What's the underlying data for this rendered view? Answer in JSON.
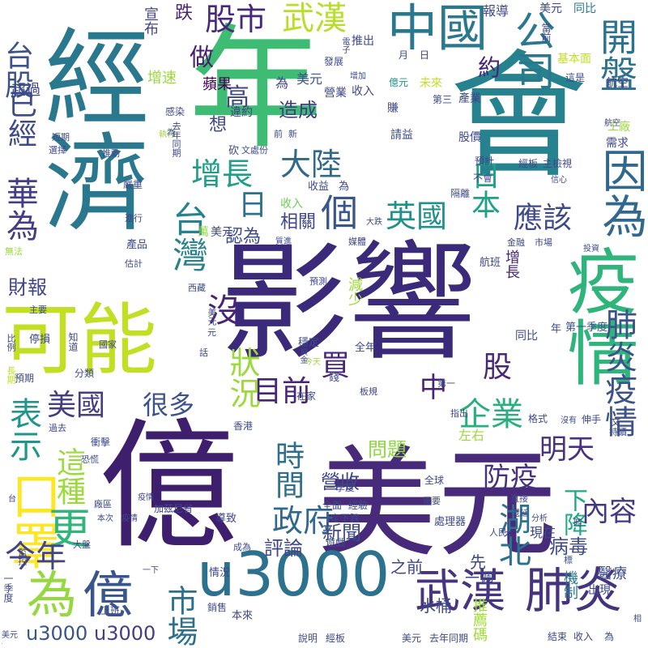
{
  "words": [
    {
      "text": "影響",
      "color": "#3b2a7a"
    },
    {
      "text": "億",
      "color": "#3d1f6e"
    },
    {
      "text": "美元",
      "color": "#472a7a"
    },
    {
      "text": "年",
      "color": "#3fbc73"
    },
    {
      "text": "經濟",
      "color": "#2a788e"
    },
    {
      "text": "會",
      "color": "#26828e"
    },
    {
      "text": "u3000",
      "color": "#2c728e"
    },
    {
      "text": "可能",
      "color": "#c2df23"
    },
    {
      "text": "疫情",
      "color": "#2fb47c"
    },
    {
      "text": "武漢",
      "color": "#463480"
    },
    {
      "text": "肺炎",
      "color": "#46337e"
    },
    {
      "text": "為",
      "color": "#95d840"
    },
    {
      "text": "億",
      "color": "#39568c"
    },
    {
      "text": "因為",
      "color": "#31688e"
    },
    {
      "text": "中國",
      "color": "#2a788e"
    },
    {
      "text": "股市",
      "color": "#482878"
    },
    {
      "text": "武漢",
      "color": "#b8de29"
    },
    {
      "text": "公司",
      "color": "#2a788e"
    },
    {
      "text": "開盤",
      "color": "#2c728e"
    },
    {
      "text": "台股",
      "color": "#3b528b"
    },
    {
      "text": "已經",
      "color": "#3e4a89"
    },
    {
      "text": "華為",
      "color": "#433e85"
    },
    {
      "text": "口罩",
      "color": "#fde725"
    },
    {
      "text": "表示",
      "color": "#1f968b"
    },
    {
      "text": "這種",
      "color": "#9bd93c"
    },
    {
      "text": "更",
      "color": "#31b57b"
    },
    {
      "text": "今年",
      "color": "#414487"
    },
    {
      "text": "市場",
      "color": "#2d708e"
    },
    {
      "text": "u3000",
      "color": "#39568c"
    },
    {
      "text": "u3000",
      "color": "#433e85"
    },
    {
      "text": "台灣",
      "color": "#26828e"
    },
    {
      "text": "增長",
      "color": "#1f9e89"
    },
    {
      "text": "大陸",
      "color": "#31688e"
    },
    {
      "text": "高",
      "color": "#3f4788"
    },
    {
      "text": "做",
      "color": "#481f70"
    },
    {
      "text": "日",
      "color": "#2c728e"
    },
    {
      "text": "個",
      "color": "#39568c"
    },
    {
      "text": "英國",
      "color": "#21918c"
    },
    {
      "text": "日本",
      "color": "#1fa187"
    },
    {
      "text": "應該",
      "color": "#3e4989"
    },
    {
      "text": "肺炎疫情",
      "color": "#3b528b"
    },
    {
      "text": "沒",
      "color": "#482475"
    },
    {
      "text": "目前",
      "color": "#482475"
    },
    {
      "text": "買",
      "color": "#482677"
    },
    {
      "text": "很多",
      "color": "#3b528b"
    },
    {
      "text": "美國",
      "color": "#433e85"
    },
    {
      "text": "狀況",
      "color": "#9bd93c"
    },
    {
      "text": "時間",
      "color": "#2d708e"
    },
    {
      "text": "企業",
      "color": "#29af7f"
    },
    {
      "text": "股",
      "color": "#482878"
    },
    {
      "text": "中",
      "color": "#482475"
    },
    {
      "text": "政府",
      "color": "#31688e"
    },
    {
      "text": "防疫",
      "color": "#46327e"
    },
    {
      "text": "明天",
      "color": "#46327e"
    },
    {
      "text": "湖北",
      "color": "#2c728e"
    },
    {
      "text": "下降",
      "color": "#22a884"
    },
    {
      "text": "內容",
      "color": "#453781"
    },
    {
      "text": "營收",
      "color": "#404688"
    },
    {
      "text": "新聞",
      "color": "#3e4a89"
    },
    {
      "text": "評論",
      "color": "#3f4788"
    },
    {
      "text": "問題",
      "color": "#8fd744"
    },
    {
      "text": "造成",
      "color": "#443b84"
    },
    {
      "text": "認為",
      "color": "#3e4a89"
    },
    {
      "text": "想",
      "color": "#3f4788"
    },
    {
      "text": "相關",
      "color": "#404688"
    },
    {
      "text": "約",
      "color": "#482475"
    },
    {
      "text": "病毒",
      "color": "#3e4a89"
    },
    {
      "text": "財報",
      "color": "#414487"
    },
    {
      "text": "增速",
      "color": "#9bd93c"
    },
    {
      "text": "蘋果",
      "color": "#440154"
    },
    {
      "text": "超過",
      "color": "#3f4788"
    },
    {
      "text": "跌",
      "color": "#482475"
    },
    {
      "text": "宣布",
      "color": "#414487"
    },
    {
      "text": "報導",
      "color": "#3e4989"
    },
    {
      "text": "美元",
      "color": "#3f4788"
    },
    {
      "text": "同比",
      "color": "#2a788e"
    },
    {
      "text": "當前",
      "color": "#3e4989"
    },
    {
      "text": "推出",
      "color": "#3e4989"
    },
    {
      "text": "發展",
      "color": "#3f4788"
    },
    {
      "text": "月",
      "color": "#3e4a89"
    },
    {
      "text": "日",
      "color": "#433e85"
    },
    {
      "text": "基本面",
      "color": "#c2df23"
    },
    {
      "text": "億元",
      "color": "#21918c"
    },
    {
      "text": "收入",
      "color": "#3e4a89"
    },
    {
      "text": "營業",
      "color": "#3f4788"
    },
    {
      "text": "為",
      "color": "#414487"
    },
    {
      "text": "美元",
      "color": "#3b528b"
    },
    {
      "text": "第三",
      "color": "#3e4a89"
    },
    {
      "text": "產業",
      "color": "#3e4989"
    },
    {
      "text": "股價",
      "color": "#3f4788"
    },
    {
      "text": "違約",
      "color": "#433e85"
    },
    {
      "text": "工廠",
      "color": "#9bd93c"
    },
    {
      "text": "需求",
      "color": "#3f4788"
    },
    {
      "text": "航空",
      "color": "#404688"
    },
    {
      "text": "請益",
      "color": "#3e4a89"
    },
    {
      "text": "預計",
      "color": "#3f4788"
    },
    {
      "text": "收入",
      "color": "#6ece58"
    },
    {
      "text": "收益",
      "color": "#3e4a89"
    },
    {
      "text": "為",
      "color": "#3e4989"
    },
    {
      "text": "萬",
      "color": "#95d840"
    },
    {
      "text": "美元",
      "color": "#3f4788"
    },
    {
      "text": "隔離",
      "color": "#3e4a89"
    },
    {
      "text": "不會",
      "color": "#404688"
    },
    {
      "text": "產品",
      "color": "#3e4989"
    },
    {
      "text": "金融",
      "color": "#3e4989"
    },
    {
      "text": "市場",
      "color": "#3f4788"
    },
    {
      "text": "投資",
      "color": "#3e4a89"
    },
    {
      "text": "估計",
      "color": "#3f4788"
    },
    {
      "text": "航班",
      "color": "#3e4989"
    },
    {
      "text": "增長",
      "color": "#482878"
    },
    {
      "text": "預測",
      "color": "#3f4788"
    },
    {
      "text": "減少",
      "color": "#a0da39"
    },
    {
      "text": "主要",
      "color": "#3e4a89"
    },
    {
      "text": "停損",
      "color": "#3f4788"
    },
    {
      "text": "知道",
      "color": "#3e4989"
    },
    {
      "text": "預期",
      "color": "#3f4788"
    },
    {
      "text": "分類",
      "color": "#3e4a89"
    },
    {
      "text": "國家",
      "color": "#404688"
    },
    {
      "text": "穩定",
      "color": "#3e4a89"
    },
    {
      "text": "全年",
      "color": "#3f4788"
    },
    {
      "text": "年",
      "color": "#3f4788"
    },
    {
      "text": "第一季度",
      "color": "#3b528b"
    },
    {
      "text": "同比",
      "color": "#3e4989"
    },
    {
      "text": "錢",
      "color": "#3f4788"
    },
    {
      "text": "在家",
      "color": "#3e4a89"
    },
    {
      "text": "板規",
      "color": "#3f4788"
    },
    {
      "text": "第一",
      "color": "#3e4989"
    },
    {
      "text": "指出",
      "color": "#3e4a89"
    },
    {
      "text": "左右",
      "color": "#9bd93c"
    },
    {
      "text": "格式",
      "color": "#3f4788"
    },
    {
      "text": "香港",
      "color": "#3e4a89"
    },
    {
      "text": "過去",
      "color": "#3f4788"
    },
    {
      "text": "恐慌",
      "color": "#3e4989"
    },
    {
      "text": "衝擊",
      "color": "#3e4a89"
    },
    {
      "text": "疫情",
      "color": "#3f4788"
    },
    {
      "text": "加茲尼省",
      "color": "#3e4a89"
    },
    {
      "text": "一季度",
      "color": "#3f4788"
    },
    {
      "text": "全面",
      "color": "#3e4a89"
    },
    {
      "text": "經驗",
      "color": "#3f4788"
    },
    {
      "text": "全球",
      "color": "#3e4989"
    },
    {
      "text": "一定下跌",
      "color": "#3e4a89"
    },
    {
      "text": "需要",
      "color": "#3f4788"
    },
    {
      "text": "處理器",
      "color": "#3e4989"
    },
    {
      "text": "人民",
      "color": "#3e4a89"
    },
    {
      "text": "導致",
      "color": "#3f4788"
    },
    {
      "text": "成為",
      "color": "#3e4a89"
    },
    {
      "text": "遊戲",
      "color": "#3f4788"
    },
    {
      "text": "之前",
      "color": "#404688"
    },
    {
      "text": "水桶",
      "color": "#3f4788"
    },
    {
      "text": "一週",
      "color": "#3e4a89"
    },
    {
      "text": "先",
      "color": "#3f4788"
    },
    {
      "text": "現在",
      "color": "#3e4989"
    },
    {
      "text": "醫療",
      "color": "#3e4a89"
    },
    {
      "text": "機制",
      "color": "#2a788e"
    },
    {
      "text": "出現",
      "color": "#3e4a89"
    },
    {
      "text": "推薦碼",
      "color": "#a0da39"
    },
    {
      "text": "情況",
      "color": "#3f4788"
    },
    {
      "text": "銷售",
      "color": "#3e4a89"
    },
    {
      "text": "本來",
      "color": "#3f4788"
    },
    {
      "text": "上班",
      "color": "#3e4989"
    },
    {
      "text": "大盤",
      "color": "#3e4a89"
    },
    {
      "text": "監控",
      "color": "#3f4788"
    },
    {
      "text": "一季度",
      "color": "#3e4989"
    },
    {
      "text": "說明",
      "color": "#3e4a89"
    },
    {
      "text": "經板",
      "color": "#3f4788"
    },
    {
      "text": "美元",
      "color": "#3e4a89"
    },
    {
      "text": "去年同期",
      "color": "#3f4788"
    },
    {
      "text": "結束",
      "color": "#3e4a89"
    },
    {
      "text": "收入",
      "color": "#3f4788"
    },
    {
      "text": "為",
      "color": "#3e4989"
    },
    {
      "text": "分析",
      "color": "#3e4a89"
    },
    {
      "text": "直接",
      "color": "#3f4788"
    },
    {
      "text": "沒有",
      "color": "#3e4a89"
    },
    {
      "text": "伸手",
      "color": "#3f4788"
    },
    {
      "text": "文",
      "color": "#3e4989"
    },
    {
      "text": "持續",
      "color": "#3e4a89"
    },
    {
      "text": "嚴重",
      "color": "#3f4788"
    },
    {
      "text": "推動",
      "color": "#3e4a89"
    },
    {
      "text": "選擇",
      "color": "#3f4788"
    },
    {
      "text": "短期",
      "color": "#3e4989"
    },
    {
      "text": "執行",
      "color": "#9bd93c"
    },
    {
      "text": "感染",
      "color": "#3e4a89"
    },
    {
      "text": "進行",
      "color": "#3f4788"
    },
    {
      "text": "質進",
      "color": "#3e4a89"
    },
    {
      "text": "媒體",
      "color": "#3f4788"
    },
    {
      "text": "大跌",
      "color": "#3e4989"
    },
    {
      "text": "西藏",
      "color": "#3e4a89"
    },
    {
      "text": "無法",
      "color": "#9bd93c"
    },
    {
      "text": "未來",
      "color": "#c2df23"
    },
    {
      "text": "這是",
      "color": "#3e4a89"
    },
    {
      "text": "航空",
      "color": "#3f4788"
    },
    {
      "text": "經板",
      "color": "#3e4a89"
    },
    {
      "text": "主檢視",
      "color": "#3f4788"
    },
    {
      "text": "信心",
      "color": "#3e4989"
    },
    {
      "text": "電子",
      "color": "#3e4a89"
    },
    {
      "text": "砍",
      "color": "#3f4788"
    },
    {
      "text": "文處份",
      "color": "#3e4a89"
    },
    {
      "text": "前",
      "color": "#3f4788"
    },
    {
      "text": "新",
      "color": "#3e4989"
    },
    {
      "text": "去年同期",
      "color": "#3e4a89"
    },
    {
      "text": "為",
      "color": "#3f4788"
    },
    {
      "text": "增加",
      "color": "#3e4a89"
    },
    {
      "text": "賺",
      "color": "#3f4788"
    },
    {
      "text": "比例",
      "color": "#3e4989"
    },
    {
      "text": "長期",
      "color": "#c2df23"
    },
    {
      "text": "今天",
      "color": "#9bd93c"
    },
    {
      "text": "資金",
      "color": "#3e4a89"
    },
    {
      "text": "話",
      "color": "#3f4788"
    },
    {
      "text": "美元",
      "color": "#3e4a89"
    },
    {
      "text": "元",
      "color": "#3f4788"
    },
    {
      "text": "廠區",
      "color": "#3e4989"
    },
    {
      "text": "本次",
      "color": "#3e4a89"
    },
    {
      "text": "疫情",
      "color": "#3f4788"
    },
    {
      "text": "一下",
      "color": "#3e4a89"
    },
    {
      "text": "遞延",
      "color": "#3f4788"
    },
    {
      "text": "太",
      "color": "#3e4989"
    },
    {
      "text": "標",
      "color": "#3e4a89"
    },
    {
      "text": "時",
      "color": "#3f4788"
    },
    {
      "text": "相",
      "color": "#3e4a89"
    },
    {
      "text": "台",
      "color": "#3f4788"
    },
    {
      "text": "美元",
      "color": "#3e4a89"
    },
    {
      "text": "為",
      "color": "#3f4788"
    }
  ]
}
